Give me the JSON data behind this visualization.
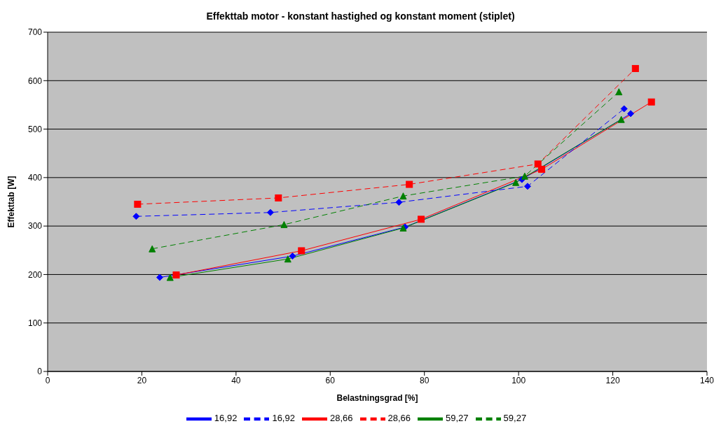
{
  "chart_data": {
    "type": "line",
    "title": "Effekttab motor - konstant hastighed og konstant moment (stiplet)",
    "xlabel": "Belastningsgrad [%]",
    "ylabel": "Effekttab [W]",
    "xlim": [
      0,
      140
    ],
    "xticks": [
      0,
      20,
      40,
      60,
      80,
      100,
      120,
      140
    ],
    "ylim": [
      0,
      700
    ],
    "yticks": [
      0,
      100,
      200,
      300,
      400,
      500,
      600,
      700
    ],
    "grid": "y",
    "legend": "bottom",
    "series": [
      {
        "name": "16,92",
        "color": "#0000ff",
        "marker": "diamond",
        "line_style": "solid",
        "x": [
          23.8,
          52.0,
          75.9,
          100.7,
          123.8
        ],
        "values": [
          194,
          238,
          298,
          396,
          532
        ]
      },
      {
        "name": "28,66",
        "color": "#ff0000",
        "marker": "square",
        "line_style": "solid",
        "x": [
          27.3,
          53.9,
          79.3,
          104.9,
          128.2
        ],
        "values": [
          199,
          249,
          314,
          417,
          556
        ]
      },
      {
        "name": "59,27",
        "color": "#008000",
        "marker": "triangle",
        "line_style": "solid",
        "x": [
          26.0,
          51.0,
          75.5,
          99.4,
          121.8
        ],
        "values": [
          194,
          232,
          296,
          390,
          520
        ]
      },
      {
        "name": "16,92",
        "color": "#0000ff",
        "marker": "diamond",
        "line_style": "dashed",
        "x": [
          18.8,
          47.3,
          74.6,
          101.9,
          122.4
        ],
        "values": [
          320,
          328,
          349,
          382,
          542
        ]
      },
      {
        "name": "28,66",
        "color": "#ff0000",
        "marker": "square",
        "line_style": "dashed",
        "x": [
          19.1,
          49.0,
          76.8,
          104.1,
          124.8
        ],
        "values": [
          345,
          358,
          386,
          428,
          625
        ]
      },
      {
        "name": "59,27",
        "color": "#008000",
        "marker": "triangle",
        "line_style": "dashed",
        "x": [
          22.2,
          50.2,
          75.5,
          101.3,
          121.3
        ],
        "values": [
          253,
          303,
          362,
          403,
          577
        ]
      }
    ]
  }
}
